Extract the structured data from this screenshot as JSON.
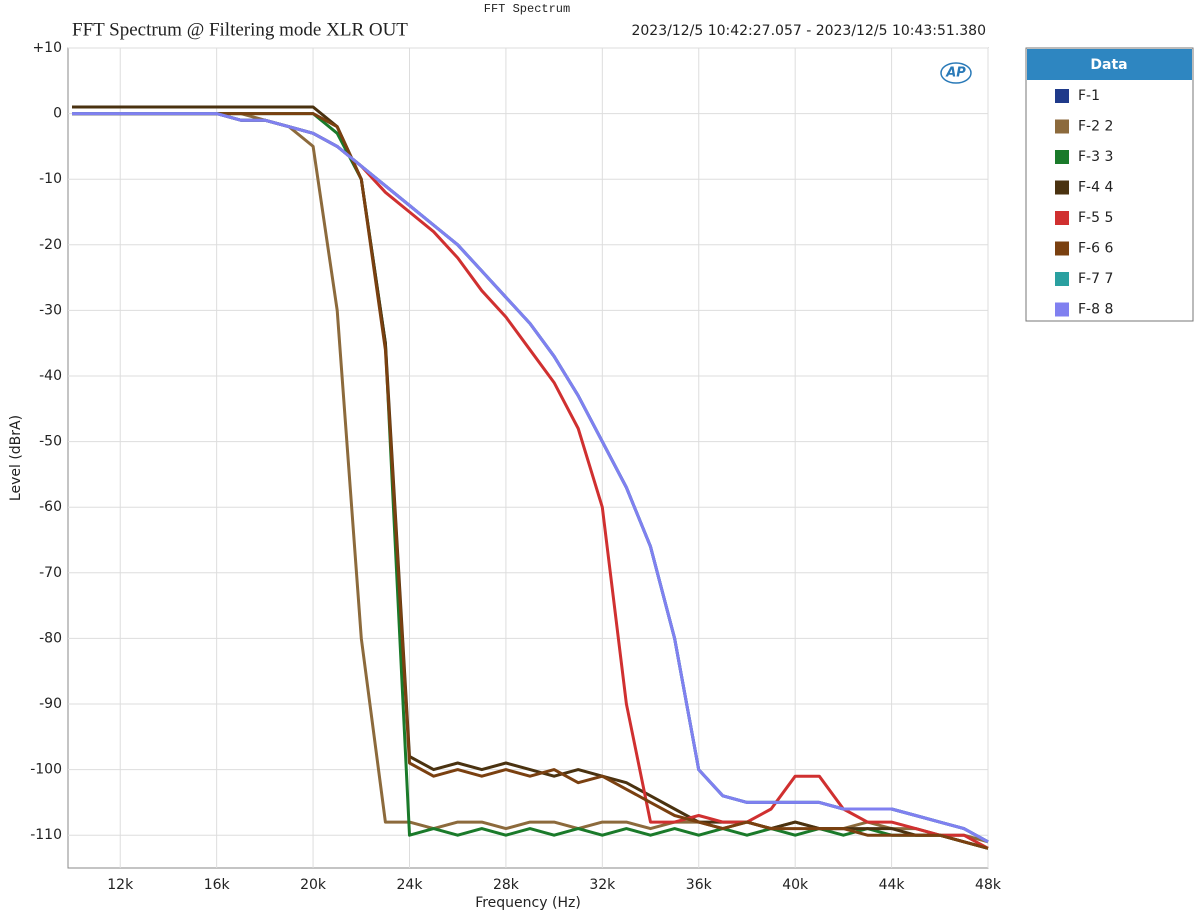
{
  "window_title": "FFT Spectrum",
  "chart_data": {
    "type": "line",
    "title": "FFT Spectrum  @ Filtering mode XLR OUT",
    "subtitle": "2023/12/5 10:42:27.057 - 2023/12/5 10:43:51.380",
    "logo": "AP",
    "xlabel": "Frequency (Hz)",
    "ylabel": "Level (dBrA)",
    "legend_title": "Data",
    "grid": true,
    "xlim": [
      9833,
      48000
    ],
    "ylim": [
      -115,
      10
    ],
    "xticks": [
      {
        "value": 12000,
        "label": "12k"
      },
      {
        "value": 16000,
        "label": "16k"
      },
      {
        "value": 20000,
        "label": "20k"
      },
      {
        "value": 24000,
        "label": "24k"
      },
      {
        "value": 28000,
        "label": "28k"
      },
      {
        "value": 32000,
        "label": "32k"
      },
      {
        "value": 36000,
        "label": "36k"
      },
      {
        "value": 40000,
        "label": "40k"
      },
      {
        "value": 44000,
        "label": "44k"
      },
      {
        "value": 48000,
        "label": "48k"
      }
    ],
    "yticks": [
      {
        "value": 10,
        "label": "+10"
      },
      0,
      -10,
      -20,
      -30,
      -40,
      -50,
      -60,
      -70,
      -80,
      -90,
      -100,
      -110
    ],
    "x": [
      10000,
      11000,
      12000,
      13000,
      14000,
      15000,
      16000,
      17000,
      18000,
      19000,
      20000,
      21000,
      22000,
      23000,
      24000,
      25000,
      26000,
      27000,
      28000,
      29000,
      30000,
      31000,
      32000,
      33000,
      34000,
      35000,
      36000,
      37000,
      38000,
      39000,
      40000,
      41000,
      42000,
      43000,
      44000,
      45000,
      46000,
      47000,
      48000
    ],
    "series": [
      {
        "name": "F-1",
        "color": "#1f3a8a",
        "values": [
          0,
          0,
          0,
          0,
          0,
          0,
          0,
          -1,
          -1,
          -2,
          -3,
          -5,
          -8,
          -11,
          -14,
          -17,
          -20,
          -24,
          -28,
          -32,
          -37,
          -43,
          -50,
          -57,
          -66,
          -80,
          -100,
          -104,
          -105,
          -105,
          -105,
          -105,
          -106,
          -106,
          -106,
          -107,
          -108,
          -109,
          -111
        ]
      },
      {
        "name": "F-2 2",
        "color": "#8c6a3c",
        "values": [
          0,
          0,
          0,
          0,
          0,
          0,
          0,
          0,
          -1,
          -2,
          -5,
          -30,
          -80,
          -108,
          -108,
          -109,
          -108,
          -108,
          -109,
          -108,
          -108,
          -109,
          -108,
          -108,
          -109,
          -108,
          -108,
          -109,
          -108,
          -109,
          -108,
          -109,
          -109,
          -108,
          -109,
          -109,
          -110,
          -110,
          -111
        ]
      },
      {
        "name": "F-3 3",
        "color": "#1a7a2a",
        "values": [
          0,
          0,
          0,
          0,
          0,
          0,
          0,
          0,
          0,
          0,
          0,
          -3,
          -10,
          -35,
          -110,
          -109,
          -110,
          -109,
          -110,
          -109,
          -110,
          -109,
          -110,
          -109,
          -110,
          -109,
          -110,
          -109,
          -110,
          -109,
          -110,
          -109,
          -110,
          -109,
          -110,
          -110,
          -110,
          -111,
          -112
        ]
      },
      {
        "name": "F-4 4",
        "color": "#4a3210",
        "values": [
          1,
          1,
          1,
          1,
          1,
          1,
          1,
          1,
          1,
          1,
          1,
          -2,
          -10,
          -35,
          -98,
          -100,
          -99,
          -100,
          -99,
          -100,
          -101,
          -100,
          -101,
          -102,
          -104,
          -106,
          -108,
          -108,
          -108,
          -109,
          -108,
          -109,
          -109,
          -109,
          -109,
          -110,
          -110,
          -111,
          -112
        ]
      },
      {
        "name": "F-5 5",
        "color": "#d03030",
        "values": [
          0,
          0,
          0,
          0,
          0,
          0,
          0,
          -1,
          -1,
          -2,
          -3,
          -5,
          -8,
          -12,
          -15,
          -18,
          -22,
          -27,
          -31,
          -36,
          -41,
          -48,
          -60,
          -90,
          -108,
          -108,
          -107,
          -108,
          -108,
          -106,
          -101,
          -101,
          -106,
          -108,
          -108,
          -109,
          -110,
          -110,
          -112
        ]
      },
      {
        "name": "F-6 6",
        "color": "#7a4010",
        "values": [
          0,
          0,
          0,
          0,
          0,
          0,
          0,
          0,
          0,
          0,
          0,
          -2,
          -10,
          -36,
          -99,
          -101,
          -100,
          -101,
          -100,
          -101,
          -100,
          -102,
          -101,
          -103,
          -105,
          -107,
          -108,
          -109,
          -108,
          -109,
          -109,
          -109,
          -109,
          -110,
          -110,
          -110,
          -110,
          -111,
          -112
        ]
      },
      {
        "name": "F-7 7",
        "color": "#2aa0a0",
        "values": [
          0,
          0,
          0,
          0,
          0,
          0,
          0,
          -1,
          -1,
          -2,
          -3,
          -5,
          -8,
          -11,
          -14,
          -17,
          -20,
          -24,
          -28,
          -32,
          -37,
          -43,
          -50,
          -57,
          -66,
          -80,
          -100,
          -104,
          -105,
          -105,
          -105,
          -105,
          -106,
          -106,
          -106,
          -107,
          -108,
          -109,
          -111
        ]
      },
      {
        "name": "F-8 8",
        "color": "#8080f0",
        "values": [
          0,
          0,
          0,
          0,
          0,
          0,
          0,
          -1,
          -1,
          -2,
          -3,
          -5,
          -8,
          -11,
          -14,
          -17,
          -20,
          -24,
          -28,
          -32,
          -37,
          -43,
          -50,
          -57,
          -66,
          -80,
          -100,
          -104,
          -105,
          -105,
          -105,
          -105,
          -106,
          -106,
          -106,
          -107,
          -108,
          -109,
          -111
        ]
      }
    ]
  }
}
